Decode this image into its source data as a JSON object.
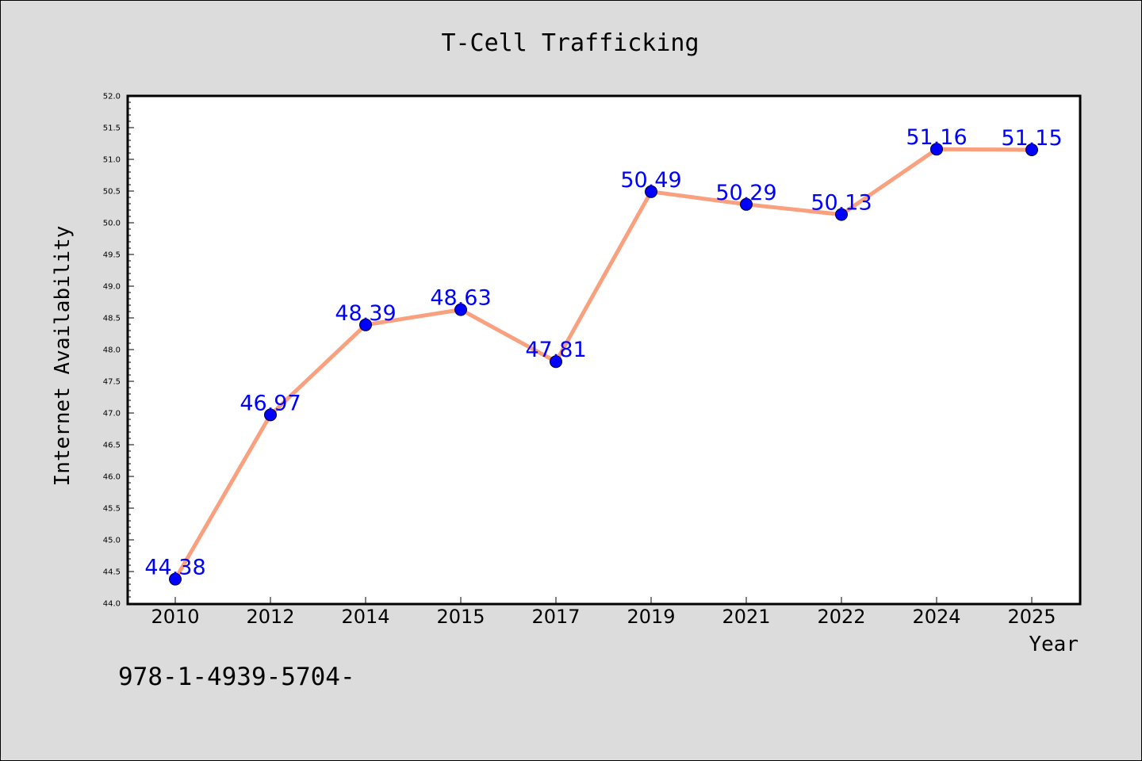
{
  "colors": {
    "background": "#dcdcdc",
    "plot_background": "#ffffff",
    "line": "#f9a07f",
    "marker": "#0000ff",
    "data_label": "#0000ff"
  },
  "chart_data": {
    "type": "line",
    "title": "T-Cell Trafficking",
    "xlabel": "Year",
    "ylabel": "Internet Availability",
    "categories": [
      "2010",
      "2012",
      "2014",
      "2015",
      "2017",
      "2019",
      "2021",
      "2022",
      "2024",
      "2025"
    ],
    "series": [
      {
        "values": [
          44.38,
          46.97,
          48.39,
          48.63,
          47.81,
          50.49,
          50.29,
          50.13,
          51.16,
          51.15
        ]
      }
    ],
    "data_labels": [
      "44.38",
      "46.97",
      "48.39",
      "48.63",
      "47.81",
      "50.49",
      "50.29",
      "50.13",
      "51.16",
      "51.15"
    ],
    "ylim": [
      44.0,
      52.0
    ],
    "yticks": [
      "44.0",
      "44.5",
      "45.0",
      "45.5",
      "46.0",
      "46.5",
      "47.0",
      "47.5",
      "48.0",
      "48.5",
      "49.0",
      "49.5",
      "50.0",
      "50.5",
      "51.0",
      "51.5",
      "52.0"
    ],
    "grid": false,
    "legend": "none",
    "marker": "circle"
  },
  "footnote": "978-1-4939-5704-"
}
